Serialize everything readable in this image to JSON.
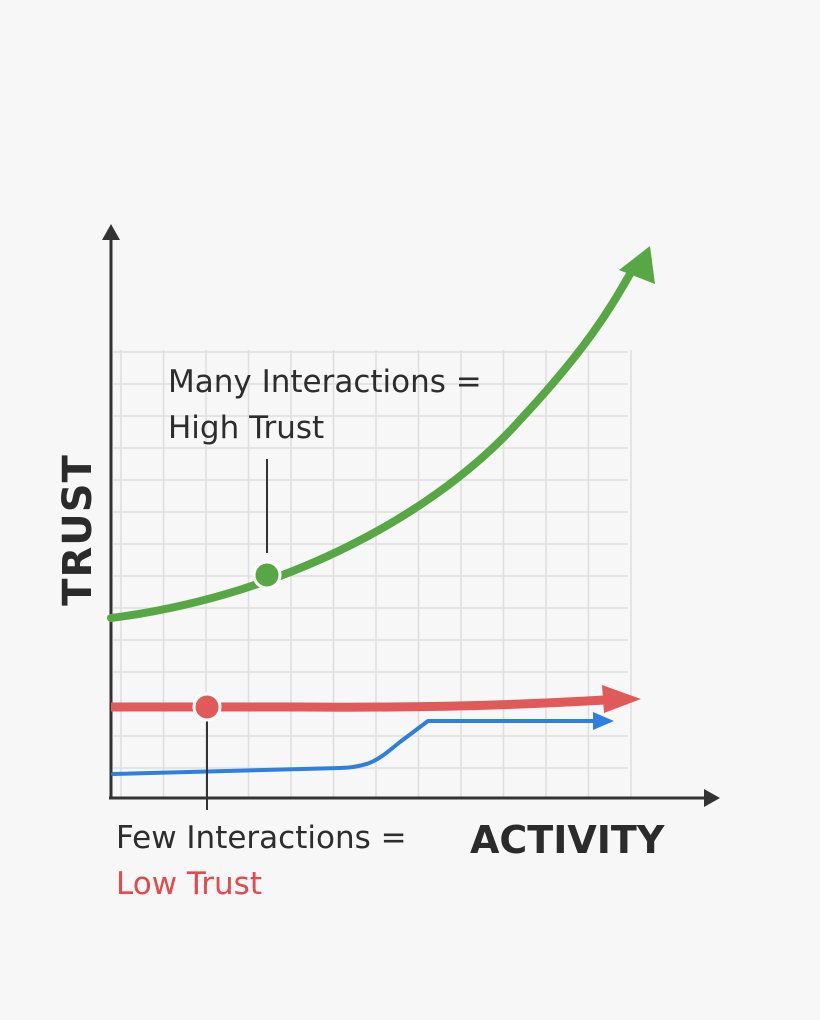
{
  "axes": {
    "y_label": "TRUST",
    "x_label": "ACTIVITY"
  },
  "annotations": {
    "high": {
      "line1": "Many Interactions =",
      "line2": "High Trust"
    },
    "low": {
      "line1": "Few Interactions =",
      "line2": "Low Trust"
    }
  },
  "colors": {
    "background": "#f7f7f7",
    "axis": "#333333",
    "grid": "#dedede",
    "high_trust": "#57a845",
    "low_trust": "#e05a5a",
    "third_line": "#2f7fe0",
    "low_label": "#e5484d"
  },
  "chart_data": {
    "type": "line",
    "grid": true,
    "series": [
      {
        "name": "",
        "color": "#57a845",
        "trend": "rising"
      },
      {
        "name": "",
        "color": "#e05a5a",
        "trend": "flat"
      },
      {
        "name": "",
        "color": "#2f7fe0",
        "trend": "flat-with-step"
      }
    ]
  }
}
